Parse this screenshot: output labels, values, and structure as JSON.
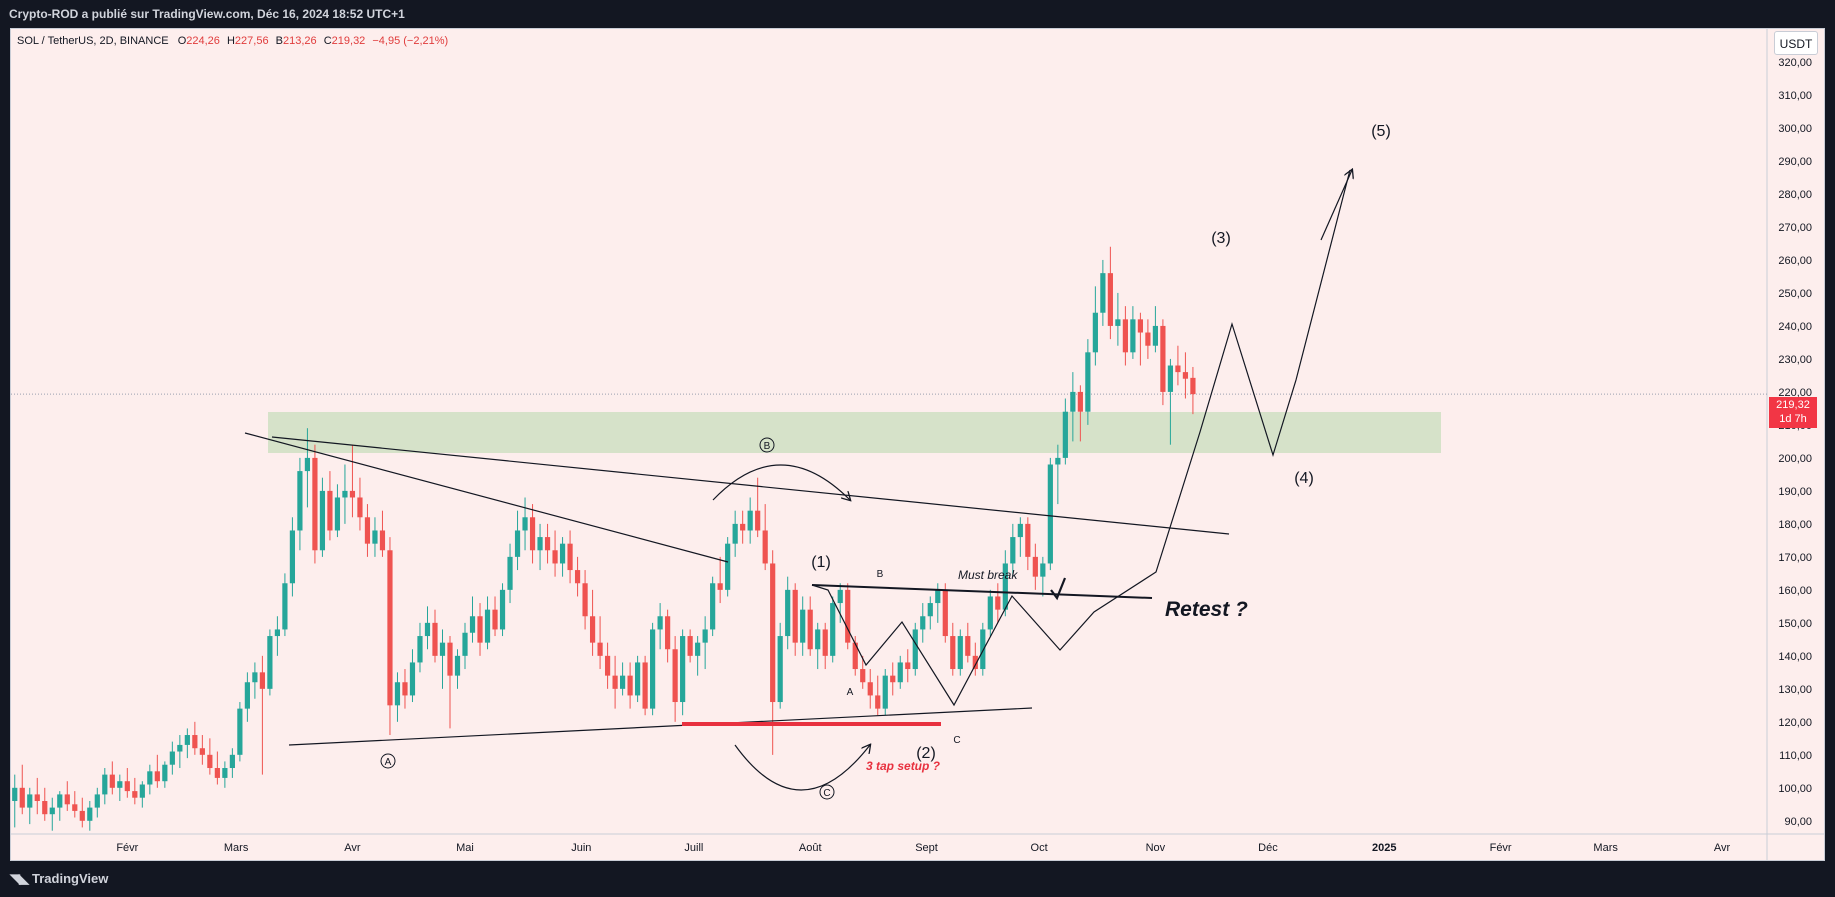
{
  "header": {
    "publisher_line": "Crypto-ROD a publié sur TradingView.com, Déc 16, 2024 18:52 UTC+1"
  },
  "footer": {
    "brand": "TradingView"
  },
  "legend": {
    "symbol": "SOL / TetherUS, 2D, BINANCE",
    "open_label": "O",
    "open": "224,26",
    "high_label": "H",
    "high": "227,56",
    "low_label": "B",
    "low": "213,26",
    "close_label": "C",
    "close": "219,32",
    "change": "−4,95 (−2,21%)"
  },
  "price_axis": {
    "unit": "USDT",
    "last_price": "219,32",
    "countdown": "1d 7h"
  },
  "colors": {
    "background": "#fdeeed",
    "up": "#26a69a",
    "down": "#ef5350",
    "zone": "#d2e0c4",
    "support_line": "#e8313f",
    "annotation_red": "#e8313f"
  },
  "annotations": {
    "wave1": "(1)",
    "wave2": "(2)",
    "wave3": "(3)",
    "wave4": "(4)",
    "wave5": "(5)",
    "circle_a": "A",
    "circle_b": "B",
    "circle_c": "C",
    "small_a": "A",
    "small_b": "B",
    "small_c": "C",
    "must_break": "Must break",
    "retest": "Retest ?",
    "three_tap": "3 tap setup ?"
  },
  "chart_data": {
    "type": "candlestick",
    "symbol": "SOL / TetherUS",
    "interval": "2D",
    "exchange": "BINANCE",
    "y_axis": {
      "unit": "USDT",
      "range": [
        86,
        330
      ],
      "ticks": [
        90,
        100,
        110,
        120,
        130,
        140,
        150,
        160,
        170,
        180,
        190,
        200,
        210,
        220,
        230,
        240,
        250,
        260,
        270,
        280,
        290,
        300,
        310,
        320
      ],
      "tick_labels": [
        "90,00",
        "100,00",
        "110,00",
        "120,00",
        "130,00",
        "140,00",
        "150,00",
        "160,00",
        "170,00",
        "180,00",
        "190,00",
        "200,00",
        "210,00",
        "220,00",
        "230,00",
        "240,00",
        "250,00",
        "260,00",
        "270,00",
        "280,00",
        "290,00",
        "300,00",
        "310,00",
        "320,00"
      ]
    },
    "x_axis": {
      "labels": [
        "Févr",
        "Mars",
        "Avr",
        "Mai",
        "Juin",
        "Juill",
        "Août",
        "Sept",
        "Oct",
        "Nov",
        "Déc",
        "2025",
        "Févr",
        "Mars",
        "Avr"
      ],
      "label_days": [
        31,
        60,
        91,
        121,
        152,
        182,
        213,
        244,
        274,
        305,
        335,
        366,
        397,
        425,
        456
      ]
    },
    "last_price": 219.32,
    "candles": [
      {
        "d": 1,
        "o": 96,
        "h": 104,
        "l": 88,
        "c": 100
      },
      {
        "d": 3,
        "o": 100,
        "h": 107,
        "l": 92,
        "c": 94
      },
      {
        "d": 5,
        "o": 94,
        "h": 100,
        "l": 89,
        "c": 98
      },
      {
        "d": 7,
        "o": 98,
        "h": 103,
        "l": 92,
        "c": 96
      },
      {
        "d": 9,
        "o": 96,
        "h": 100,
        "l": 90,
        "c": 92
      },
      {
        "d": 11,
        "o": 92,
        "h": 97,
        "l": 87,
        "c": 94
      },
      {
        "d": 13,
        "o": 94,
        "h": 99,
        "l": 90,
        "c": 98
      },
      {
        "d": 15,
        "o": 98,
        "h": 102,
        "l": 93,
        "c": 95
      },
      {
        "d": 17,
        "o": 95,
        "h": 99,
        "l": 91,
        "c": 93
      },
      {
        "d": 19,
        "o": 93,
        "h": 97,
        "l": 88,
        "c": 90
      },
      {
        "d": 21,
        "o": 90,
        "h": 96,
        "l": 87,
        "c": 94
      },
      {
        "d": 23,
        "o": 94,
        "h": 100,
        "l": 91,
        "c": 98
      },
      {
        "d": 25,
        "o": 98,
        "h": 106,
        "l": 95,
        "c": 104
      },
      {
        "d": 27,
        "o": 104,
        "h": 108,
        "l": 98,
        "c": 100
      },
      {
        "d": 29,
        "o": 100,
        "h": 104,
        "l": 96,
        "c": 102
      },
      {
        "d": 31,
        "o": 102,
        "h": 106,
        "l": 97,
        "c": 99
      },
      {
        "d": 33,
        "o": 99,
        "h": 103,
        "l": 95,
        "c": 97
      },
      {
        "d": 35,
        "o": 97,
        "h": 102,
        "l": 94,
        "c": 101
      },
      {
        "d": 37,
        "o": 101,
        "h": 107,
        "l": 98,
        "c": 105
      },
      {
        "d": 39,
        "o": 105,
        "h": 110,
        "l": 100,
        "c": 102
      },
      {
        "d": 41,
        "o": 102,
        "h": 108,
        "l": 100,
        "c": 107
      },
      {
        "d": 43,
        "o": 107,
        "h": 114,
        "l": 104,
        "c": 111
      },
      {
        "d": 45,
        "o": 111,
        "h": 116,
        "l": 106,
        "c": 113
      },
      {
        "d": 47,
        "o": 113,
        "h": 118,
        "l": 109,
        "c": 116
      },
      {
        "d": 49,
        "o": 116,
        "h": 120,
        "l": 110,
        "c": 112
      },
      {
        "d": 51,
        "o": 112,
        "h": 116,
        "l": 107,
        "c": 110
      },
      {
        "d": 53,
        "o": 110,
        "h": 115,
        "l": 104,
        "c": 106
      },
      {
        "d": 55,
        "o": 106,
        "h": 111,
        "l": 101,
        "c": 103
      },
      {
        "d": 57,
        "o": 103,
        "h": 108,
        "l": 100,
        "c": 106
      },
      {
        "d": 59,
        "o": 106,
        "h": 112,
        "l": 103,
        "c": 110
      },
      {
        "d": 61,
        "o": 110,
        "h": 126,
        "l": 108,
        "c": 124
      },
      {
        "d": 63,
        "o": 124,
        "h": 135,
        "l": 120,
        "c": 132
      },
      {
        "d": 65,
        "o": 132,
        "h": 138,
        "l": 127,
        "c": 135
      },
      {
        "d": 67,
        "o": 135,
        "h": 140,
        "l": 104,
        "c": 130
      },
      {
        "d": 69,
        "o": 130,
        "h": 148,
        "l": 128,
        "c": 146
      },
      {
        "d": 71,
        "o": 146,
        "h": 152,
        "l": 140,
        "c": 148
      },
      {
        "d": 73,
        "o": 148,
        "h": 165,
        "l": 146,
        "c": 162
      },
      {
        "d": 75,
        "o": 162,
        "h": 182,
        "l": 158,
        "c": 178
      },
      {
        "d": 77,
        "o": 178,
        "h": 200,
        "l": 172,
        "c": 196
      },
      {
        "d": 79,
        "o": 196,
        "h": 209,
        "l": 185,
        "c": 200
      },
      {
        "d": 81,
        "o": 200,
        "h": 204,
        "l": 168,
        "c": 172
      },
      {
        "d": 83,
        "o": 172,
        "h": 194,
        "l": 170,
        "c": 190
      },
      {
        "d": 85,
        "o": 190,
        "h": 196,
        "l": 175,
        "c": 178
      },
      {
        "d": 87,
        "o": 178,
        "h": 192,
        "l": 176,
        "c": 188
      },
      {
        "d": 89,
        "o": 188,
        "h": 198,
        "l": 180,
        "c": 190
      },
      {
        "d": 91,
        "o": 190,
        "h": 204,
        "l": 182,
        "c": 188
      },
      {
        "d": 93,
        "o": 188,
        "h": 194,
        "l": 178,
        "c": 182
      },
      {
        "d": 95,
        "o": 182,
        "h": 186,
        "l": 170,
        "c": 174
      },
      {
        "d": 97,
        "o": 174,
        "h": 182,
        "l": 170,
        "c": 178
      },
      {
        "d": 99,
        "o": 178,
        "h": 184,
        "l": 170,
        "c": 172
      },
      {
        "d": 101,
        "o": 172,
        "h": 176,
        "l": 116,
        "c": 125
      },
      {
        "d": 103,
        "o": 125,
        "h": 135,
        "l": 120,
        "c": 132
      },
      {
        "d": 105,
        "o": 132,
        "h": 136,
        "l": 124,
        "c": 128
      },
      {
        "d": 107,
        "o": 128,
        "h": 142,
        "l": 126,
        "c": 138
      },
      {
        "d": 109,
        "o": 138,
        "h": 150,
        "l": 135,
        "c": 146
      },
      {
        "d": 111,
        "o": 146,
        "h": 155,
        "l": 142,
        "c": 150
      },
      {
        "d": 113,
        "o": 150,
        "h": 154,
        "l": 138,
        "c": 140
      },
      {
        "d": 115,
        "o": 140,
        "h": 148,
        "l": 130,
        "c": 144
      },
      {
        "d": 117,
        "o": 144,
        "h": 146,
        "l": 118,
        "c": 134
      },
      {
        "d": 119,
        "o": 134,
        "h": 142,
        "l": 130,
        "c": 140
      },
      {
        "d": 121,
        "o": 140,
        "h": 150,
        "l": 136,
        "c": 147
      },
      {
        "d": 123,
        "o": 147,
        "h": 158,
        "l": 144,
        "c": 152
      },
      {
        "d": 125,
        "o": 152,
        "h": 156,
        "l": 140,
        "c": 144
      },
      {
        "d": 127,
        "o": 144,
        "h": 158,
        "l": 142,
        "c": 154
      },
      {
        "d": 129,
        "o": 154,
        "h": 158,
        "l": 146,
        "c": 148
      },
      {
        "d": 131,
        "o": 148,
        "h": 162,
        "l": 146,
        "c": 160
      },
      {
        "d": 133,
        "o": 160,
        "h": 174,
        "l": 156,
        "c": 170
      },
      {
        "d": 135,
        "o": 170,
        "h": 184,
        "l": 166,
        "c": 178
      },
      {
        "d": 137,
        "o": 178,
        "h": 188,
        "l": 172,
        "c": 182
      },
      {
        "d": 139,
        "o": 182,
        "h": 186,
        "l": 168,
        "c": 172
      },
      {
        "d": 141,
        "o": 172,
        "h": 180,
        "l": 166,
        "c": 176
      },
      {
        "d": 143,
        "o": 176,
        "h": 180,
        "l": 168,
        "c": 172
      },
      {
        "d": 145,
        "o": 172,
        "h": 178,
        "l": 164,
        "c": 168
      },
      {
        "d": 147,
        "o": 168,
        "h": 176,
        "l": 164,
        "c": 174
      },
      {
        "d": 149,
        "o": 174,
        "h": 178,
        "l": 162,
        "c": 166
      },
      {
        "d": 151,
        "o": 166,
        "h": 170,
        "l": 158,
        "c": 162
      },
      {
        "d": 153,
        "o": 162,
        "h": 166,
        "l": 148,
        "c": 152
      },
      {
        "d": 155,
        "o": 152,
        "h": 160,
        "l": 140,
        "c": 144
      },
      {
        "d": 157,
        "o": 144,
        "h": 152,
        "l": 136,
        "c": 140
      },
      {
        "d": 159,
        "o": 140,
        "h": 144,
        "l": 130,
        "c": 134
      },
      {
        "d": 161,
        "o": 134,
        "h": 140,
        "l": 124,
        "c": 130
      },
      {
        "d": 163,
        "o": 130,
        "h": 138,
        "l": 128,
        "c": 134
      },
      {
        "d": 165,
        "o": 134,
        "h": 138,
        "l": 124,
        "c": 128
      },
      {
        "d": 167,
        "o": 128,
        "h": 140,
        "l": 126,
        "c": 138
      },
      {
        "d": 169,
        "o": 138,
        "h": 140,
        "l": 122,
        "c": 124
      },
      {
        "d": 171,
        "o": 124,
        "h": 150,
        "l": 122,
        "c": 148
      },
      {
        "d": 173,
        "o": 148,
        "h": 156,
        "l": 142,
        "c": 152
      },
      {
        "d": 175,
        "o": 152,
        "h": 154,
        "l": 138,
        "c": 142
      },
      {
        "d": 177,
        "o": 142,
        "h": 146,
        "l": 120,
        "c": 126
      },
      {
        "d": 179,
        "o": 126,
        "h": 148,
        "l": 122,
        "c": 146
      },
      {
        "d": 181,
        "o": 146,
        "h": 148,
        "l": 138,
        "c": 140
      },
      {
        "d": 183,
        "o": 140,
        "h": 146,
        "l": 134,
        "c": 144
      },
      {
        "d": 185,
        "o": 144,
        "h": 152,
        "l": 136,
        "c": 148
      },
      {
        "d": 187,
        "o": 148,
        "h": 164,
        "l": 146,
        "c": 162
      },
      {
        "d": 189,
        "o": 162,
        "h": 170,
        "l": 156,
        "c": 160
      },
      {
        "d": 191,
        "o": 160,
        "h": 176,
        "l": 158,
        "c": 174
      },
      {
        "d": 193,
        "o": 174,
        "h": 184,
        "l": 170,
        "c": 180
      },
      {
        "d": 195,
        "o": 180,
        "h": 184,
        "l": 174,
        "c": 178
      },
      {
        "d": 197,
        "o": 178,
        "h": 188,
        "l": 174,
        "c": 184
      },
      {
        "d": 199,
        "o": 184,
        "h": 194,
        "l": 176,
        "c": 178
      },
      {
        "d": 201,
        "o": 178,
        "h": 186,
        "l": 166,
        "c": 168
      },
      {
        "d": 203,
        "o": 168,
        "h": 172,
        "l": 110,
        "c": 126
      },
      {
        "d": 205,
        "o": 126,
        "h": 150,
        "l": 124,
        "c": 146
      },
      {
        "d": 207,
        "o": 146,
        "h": 164,
        "l": 142,
        "c": 160
      },
      {
        "d": 209,
        "o": 160,
        "h": 162,
        "l": 140,
        "c": 144
      },
      {
        "d": 211,
        "o": 144,
        "h": 158,
        "l": 140,
        "c": 154
      },
      {
        "d": 213,
        "o": 154,
        "h": 158,
        "l": 140,
        "c": 142
      },
      {
        "d": 215,
        "o": 142,
        "h": 150,
        "l": 136,
        "c": 148
      },
      {
        "d": 217,
        "o": 148,
        "h": 150,
        "l": 136,
        "c": 140
      },
      {
        "d": 219,
        "o": 140,
        "h": 158,
        "l": 138,
        "c": 156
      },
      {
        "d": 221,
        "o": 156,
        "h": 162,
        "l": 150,
        "c": 160
      },
      {
        "d": 223,
        "o": 160,
        "h": 162,
        "l": 142,
        "c": 144
      },
      {
        "d": 225,
        "o": 144,
        "h": 146,
        "l": 134,
        "c": 136
      },
      {
        "d": 227,
        "o": 136,
        "h": 140,
        "l": 130,
        "c": 132
      },
      {
        "d": 229,
        "o": 132,
        "h": 136,
        "l": 124,
        "c": 128
      },
      {
        "d": 231,
        "o": 128,
        "h": 134,
        "l": 122,
        "c": 124
      },
      {
        "d": 233,
        "o": 124,
        "h": 136,
        "l": 122,
        "c": 134
      },
      {
        "d": 235,
        "o": 134,
        "h": 138,
        "l": 128,
        "c": 132
      },
      {
        "d": 237,
        "o": 132,
        "h": 140,
        "l": 130,
        "c": 138
      },
      {
        "d": 239,
        "o": 138,
        "h": 142,
        "l": 132,
        "c": 136
      },
      {
        "d": 241,
        "o": 136,
        "h": 150,
        "l": 134,
        "c": 148
      },
      {
        "d": 243,
        "o": 148,
        "h": 156,
        "l": 144,
        "c": 152
      },
      {
        "d": 245,
        "o": 152,
        "h": 158,
        "l": 148,
        "c": 156
      },
      {
        "d": 247,
        "o": 156,
        "h": 162,
        "l": 150,
        "c": 160
      },
      {
        "d": 249,
        "o": 160,
        "h": 162,
        "l": 144,
        "c": 146
      },
      {
        "d": 251,
        "o": 146,
        "h": 150,
        "l": 134,
        "c": 136
      },
      {
        "d": 253,
        "o": 136,
        "h": 148,
        "l": 134,
        "c": 146
      },
      {
        "d": 255,
        "o": 146,
        "h": 150,
        "l": 138,
        "c": 140
      },
      {
        "d": 257,
        "o": 140,
        "h": 144,
        "l": 134,
        "c": 136
      },
      {
        "d": 259,
        "o": 136,
        "h": 150,
        "l": 134,
        "c": 148
      },
      {
        "d": 261,
        "o": 148,
        "h": 160,
        "l": 146,
        "c": 158
      },
      {
        "d": 263,
        "o": 158,
        "h": 162,
        "l": 150,
        "c": 154
      },
      {
        "d": 265,
        "o": 154,
        "h": 172,
        "l": 152,
        "c": 168
      },
      {
        "d": 267,
        "o": 168,
        "h": 180,
        "l": 164,
        "c": 176
      },
      {
        "d": 269,
        "o": 176,
        "h": 182,
        "l": 170,
        "c": 180
      },
      {
        "d": 271,
        "o": 180,
        "h": 182,
        "l": 166,
        "c": 170
      },
      {
        "d": 273,
        "o": 170,
        "h": 174,
        "l": 160,
        "c": 164
      },
      {
        "d": 275,
        "o": 164,
        "h": 170,
        "l": 158,
        "c": 168
      },
      {
        "d": 277,
        "o": 168,
        "h": 200,
        "l": 166,
        "c": 198
      },
      {
        "d": 279,
        "o": 198,
        "h": 204,
        "l": 186,
        "c": 200
      },
      {
        "d": 281,
        "o": 200,
        "h": 218,
        "l": 198,
        "c": 214
      },
      {
        "d": 283,
        "o": 214,
        "h": 226,
        "l": 205,
        "c": 220
      },
      {
        "d": 285,
        "o": 220,
        "h": 222,
        "l": 205,
        "c": 214
      },
      {
        "d": 287,
        "o": 214,
        "h": 236,
        "l": 210,
        "c": 232
      },
      {
        "d": 289,
        "o": 232,
        "h": 252,
        "l": 228,
        "c": 244
      },
      {
        "d": 291,
        "o": 244,
        "h": 260,
        "l": 240,
        "c": 256
      },
      {
        "d": 293,
        "o": 256,
        "h": 264,
        "l": 236,
        "c": 240
      },
      {
        "d": 295,
        "o": 240,
        "h": 250,
        "l": 234,
        "c": 242
      },
      {
        "d": 297,
        "o": 242,
        "h": 246,
        "l": 228,
        "c": 232
      },
      {
        "d": 299,
        "o": 232,
        "h": 246,
        "l": 230,
        "c": 242
      },
      {
        "d": 301,
        "o": 242,
        "h": 244,
        "l": 228,
        "c": 238
      },
      {
        "d": 303,
        "o": 238,
        "h": 242,
        "l": 230,
        "c": 234
      },
      {
        "d": 305,
        "o": 234,
        "h": 246,
        "l": 232,
        "c": 240
      },
      {
        "d": 307,
        "o": 240,
        "h": 242,
        "l": 216,
        "c": 220
      },
      {
        "d": 309,
        "o": 220,
        "h": 230,
        "l": 204,
        "c": 228
      },
      {
        "d": 311,
        "o": 228,
        "h": 234,
        "l": 222,
        "c": 226
      },
      {
        "d": 313,
        "o": 226,
        "h": 232,
        "l": 218,
        "c": 224
      },
      {
        "d": 315,
        "o": 224.26,
        "h": 227.56,
        "l": 213.26,
        "c": 219.32
      }
    ],
    "day_range": [
      0,
      468
    ]
  }
}
